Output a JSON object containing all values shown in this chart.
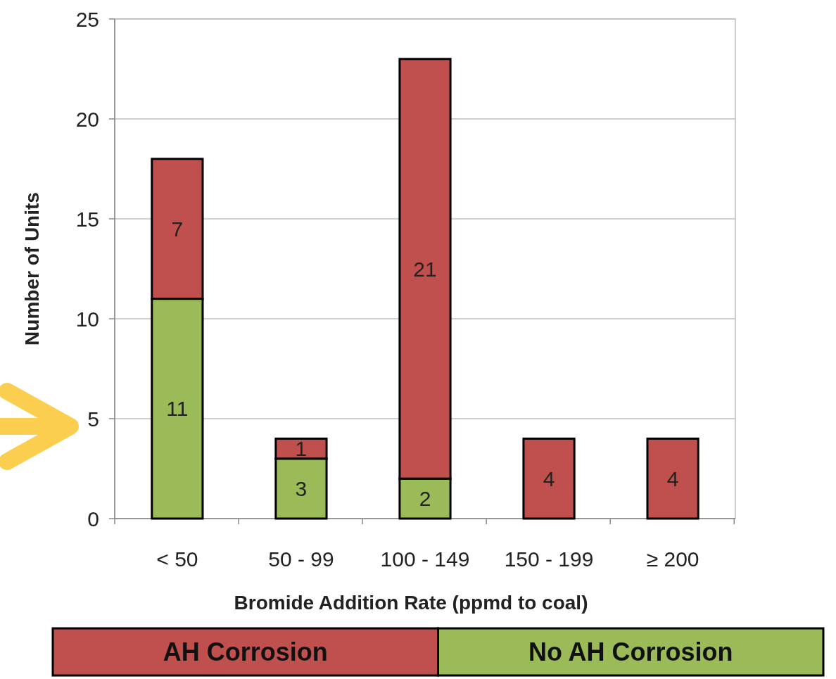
{
  "chart_data": {
    "type": "bar",
    "stacked": true,
    "xlabel": "Bromide Addition Rate (ppmd to coal)",
    "ylabel": "Number of Units",
    "categories": [
      "< 50",
      "50 - 99",
      "100 - 149",
      "150 - 199",
      "≥ 200"
    ],
    "series": [
      {
        "name": "No AH Corrosion",
        "color": "#9bbb59",
        "values": [
          11,
          3,
          2,
          0,
          0
        ],
        "value_labels": [
          "11",
          "3",
          "2",
          null,
          null
        ]
      },
      {
        "name": "AH Corrosion",
        "color": "#c0504d",
        "values": [
          7,
          1,
          21,
          4,
          4
        ],
        "value_labels": [
          "7",
          "1",
          "21",
          "4",
          "4"
        ]
      }
    ],
    "ylim": [
      0,
      25
    ],
    "yticks": [
      0,
      5,
      10,
      15,
      20,
      25
    ],
    "grid": "y",
    "legend": "bottom"
  }
}
